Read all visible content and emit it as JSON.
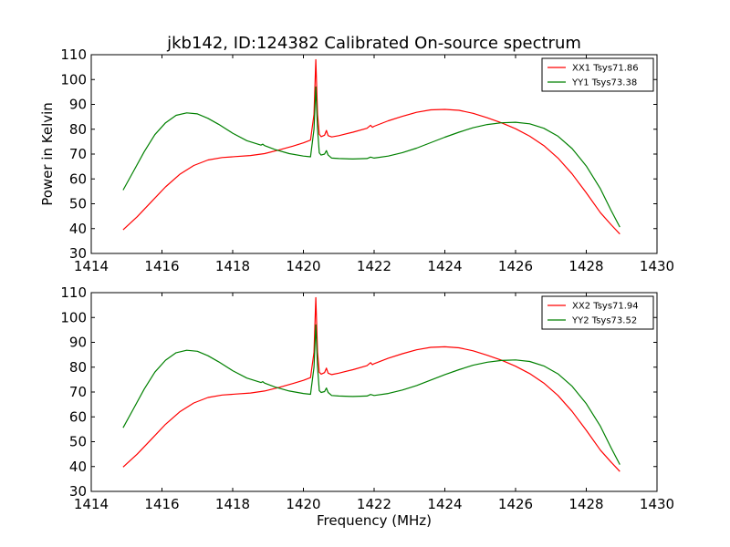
{
  "chart_data": [
    {
      "type": "line",
      "title": "jkb142, ID:124382 Calibrated On-source spectrum",
      "xlabel": "",
      "ylabel": "Power in Kelvin",
      "xlim": [
        1414,
        1430
      ],
      "ylim": [
        30,
        110
      ],
      "xticks": [
        "1414",
        "1416",
        "1418",
        "1420",
        "1422",
        "1424",
        "1426",
        "1428",
        "1430"
      ],
      "yticks": [
        "30",
        "40",
        "50",
        "60",
        "70",
        "80",
        "90",
        "100",
        "110"
      ],
      "legend_position": "top-right",
      "series": [
        {
          "name": "XX1 Tsys71.86",
          "color": "#ff0000",
          "x": [
            1414.9,
            1415.3,
            1415.7,
            1416.1,
            1416.5,
            1416.9,
            1417.3,
            1417.7,
            1418.1,
            1418.5,
            1418.9,
            1419.3,
            1419.7,
            1420.0,
            1420.2,
            1420.3,
            1420.35,
            1420.4,
            1420.45,
            1420.5,
            1420.6,
            1420.65,
            1420.7,
            1420.8,
            1421.0,
            1421.4,
            1421.8,
            1421.9,
            1421.95,
            1422.0,
            1422.4,
            1422.8,
            1423.2,
            1423.6,
            1424.0,
            1424.4,
            1424.8,
            1425.2,
            1425.6,
            1426.0,
            1426.4,
            1426.8,
            1427.2,
            1427.6,
            1428.0,
            1428.4,
            1428.7,
            1428.95
          ],
          "y": [
            39.5,
            44.8,
            50.8,
            56.8,
            61.8,
            65.4,
            67.6,
            68.6,
            69.0,
            69.4,
            70.2,
            71.6,
            73.2,
            74.5,
            75.6,
            86.0,
            108.0,
            86.0,
            78.0,
            77.0,
            77.6,
            79.5,
            77.4,
            76.9,
            77.4,
            78.8,
            80.4,
            81.6,
            80.8,
            81.2,
            83.4,
            85.2,
            86.8,
            87.8,
            88.0,
            87.6,
            86.4,
            84.6,
            82.6,
            80.2,
            77.2,
            73.4,
            68.4,
            62.0,
            54.4,
            46.4,
            41.6,
            37.8
          ]
        },
        {
          "name": "YY1 Tsys73.38",
          "color": "#008000",
          "x": [
            1414.9,
            1415.2,
            1415.5,
            1415.8,
            1416.1,
            1416.4,
            1416.7,
            1417.0,
            1417.3,
            1417.6,
            1418.0,
            1418.4,
            1418.8,
            1418.85,
            1418.9,
            1419.2,
            1419.6,
            1420.0,
            1420.2,
            1420.3,
            1420.35,
            1420.4,
            1420.45,
            1420.5,
            1420.6,
            1420.65,
            1420.7,
            1420.8,
            1421.0,
            1421.4,
            1421.8,
            1421.9,
            1422.0,
            1422.4,
            1422.8,
            1423.2,
            1423.6,
            1424.0,
            1424.4,
            1424.8,
            1425.2,
            1425.6,
            1426.0,
            1426.4,
            1426.8,
            1427.2,
            1427.6,
            1428.0,
            1428.4,
            1428.7,
            1428.95
          ],
          "y": [
            55.5,
            63.2,
            71.0,
            77.8,
            82.6,
            85.6,
            86.6,
            86.2,
            84.4,
            82.0,
            78.4,
            75.4,
            73.6,
            74.0,
            73.4,
            71.8,
            70.2,
            69.2,
            68.9,
            80.0,
            97.0,
            80.0,
            70.5,
            69.6,
            70.0,
            71.4,
            69.6,
            68.4,
            68.2,
            68.0,
            68.2,
            68.8,
            68.4,
            69.2,
            70.6,
            72.4,
            74.6,
            76.8,
            78.8,
            80.6,
            81.9,
            82.6,
            82.8,
            82.2,
            80.4,
            77.2,
            72.2,
            65.2,
            56.0,
            47.4,
            40.6
          ]
        }
      ]
    },
    {
      "type": "line",
      "title": "",
      "xlabel": "Frequency (MHz)",
      "ylabel": "",
      "xlim": [
        1414,
        1430
      ],
      "ylim": [
        30,
        110
      ],
      "xticks": [
        "1414",
        "1416",
        "1418",
        "1420",
        "1422",
        "1424",
        "1426",
        "1428",
        "1430"
      ],
      "yticks": [
        "30",
        "40",
        "50",
        "60",
        "70",
        "80",
        "90",
        "100",
        "110"
      ],
      "legend_position": "top-right",
      "series": [
        {
          "name": "XX2 Tsys71.94",
          "color": "#ff0000",
          "x": [
            1414.9,
            1415.3,
            1415.7,
            1416.1,
            1416.5,
            1416.9,
            1417.3,
            1417.7,
            1418.1,
            1418.5,
            1418.9,
            1419.3,
            1419.7,
            1420.0,
            1420.2,
            1420.3,
            1420.35,
            1420.4,
            1420.45,
            1420.5,
            1420.6,
            1420.65,
            1420.7,
            1420.8,
            1421.0,
            1421.4,
            1421.8,
            1421.9,
            1421.95,
            1422.0,
            1422.4,
            1422.8,
            1423.2,
            1423.6,
            1424.0,
            1424.4,
            1424.8,
            1425.2,
            1425.6,
            1426.0,
            1426.4,
            1426.8,
            1427.2,
            1427.6,
            1428.0,
            1428.4,
            1428.7,
            1428.95
          ],
          "y": [
            39.8,
            45.0,
            51.0,
            57.0,
            62.0,
            65.6,
            67.8,
            68.8,
            69.2,
            69.6,
            70.4,
            71.8,
            73.4,
            74.7,
            75.8,
            86.0,
            108.0,
            86.0,
            78.0,
            77.2,
            77.8,
            79.6,
            77.6,
            77.0,
            77.6,
            79.0,
            80.6,
            81.8,
            81.0,
            81.4,
            83.6,
            85.4,
            87.0,
            88.0,
            88.2,
            87.8,
            86.6,
            84.8,
            82.8,
            80.4,
            77.4,
            73.6,
            68.6,
            62.2,
            54.6,
            46.6,
            41.8,
            38.0
          ]
        },
        {
          "name": "YY2 Tsys73.52",
          "color": "#008000",
          "x": [
            1414.9,
            1415.2,
            1415.5,
            1415.8,
            1416.1,
            1416.4,
            1416.7,
            1417.0,
            1417.3,
            1417.6,
            1418.0,
            1418.4,
            1418.8,
            1418.85,
            1418.9,
            1419.2,
            1419.6,
            1420.0,
            1420.2,
            1420.3,
            1420.35,
            1420.4,
            1420.45,
            1420.5,
            1420.6,
            1420.65,
            1420.7,
            1420.8,
            1421.0,
            1421.4,
            1421.8,
            1421.9,
            1422.0,
            1422.4,
            1422.8,
            1423.2,
            1423.6,
            1424.0,
            1424.4,
            1424.8,
            1425.2,
            1425.6,
            1426.0,
            1426.4,
            1426.8,
            1427.2,
            1427.6,
            1428.0,
            1428.4,
            1428.7,
            1428.95
          ],
          "y": [
            55.6,
            63.4,
            71.2,
            78.0,
            82.8,
            85.8,
            86.8,
            86.4,
            84.6,
            82.2,
            78.6,
            75.6,
            73.8,
            74.2,
            73.6,
            72.0,
            70.4,
            69.4,
            69.1,
            80.0,
            97.0,
            80.0,
            70.6,
            69.8,
            70.2,
            71.6,
            69.8,
            68.6,
            68.4,
            68.2,
            68.4,
            69.0,
            68.6,
            69.4,
            70.8,
            72.6,
            74.8,
            77.0,
            79.0,
            80.8,
            82.0,
            82.7,
            82.9,
            82.3,
            80.5,
            77.3,
            72.3,
            65.3,
            56.2,
            47.6,
            40.8
          ]
        }
      ]
    }
  ]
}
